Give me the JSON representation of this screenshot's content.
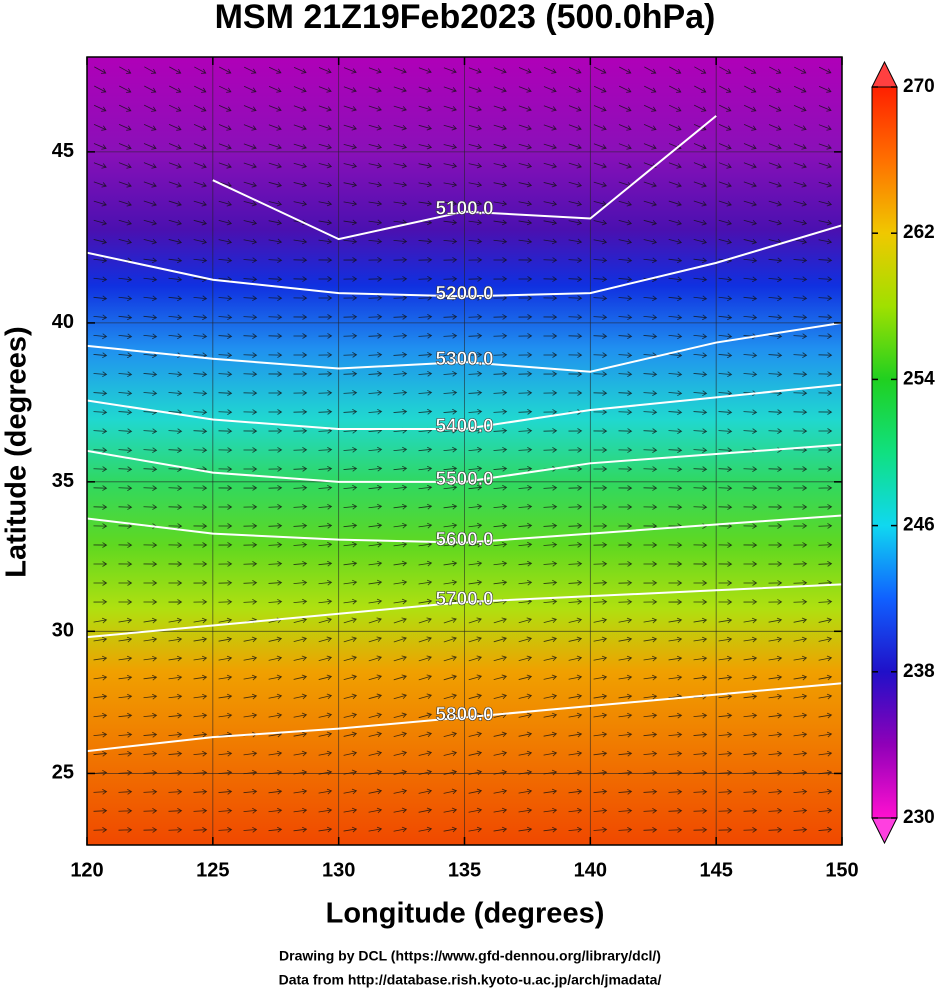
{
  "chart_data": {
    "type": "contour",
    "title": "MSM 21Z19Feb2023 (500.0hPa)",
    "x_label": "Longitude (degrees)",
    "y_label": "Latitude  (degrees)",
    "projection": "mercator",
    "xlim": [
      120,
      150
    ],
    "ylim": [
      22.4,
      47.6
    ],
    "xticks": [
      120,
      125,
      130,
      135,
      140,
      145,
      150
    ],
    "yticks": [
      25,
      30,
      35,
      40,
      45
    ],
    "grid": true,
    "x": [
      120,
      125,
      130,
      135,
      140,
      145,
      150
    ],
    "contours": [
      {
        "level": {
          "value": 5100,
          "label": "5100.0"
        },
        "lat": [
          null,
          44.2,
          42.5,
          43.3,
          43.1,
          46.0,
          null
        ]
      },
      {
        "level": {
          "value": 5200,
          "label": "5200.0"
        },
        "lat": [
          42.1,
          41.3,
          40.9,
          40.8,
          40.9,
          41.8,
          42.9
        ]
      },
      {
        "level": {
          "value": 5300,
          "label": "5300.0"
        },
        "lat": [
          39.3,
          38.9,
          38.6,
          38.8,
          38.5,
          39.4,
          40.0
        ]
      },
      {
        "level": {
          "value": 5400,
          "label": "5400.0"
        },
        "lat": [
          37.6,
          37.0,
          36.7,
          36.7,
          37.3,
          37.7,
          38.1
        ]
      },
      {
        "level": {
          "value": 5500,
          "label": "5500.0"
        },
        "lat": [
          36.0,
          35.3,
          35.0,
          35.0,
          35.6,
          35.9,
          36.2
        ]
      },
      {
        "level": {
          "value": 5600,
          "label": "5600.0"
        },
        "lat": [
          33.8,
          33.3,
          33.1,
          33.0,
          33.3,
          33.6,
          33.9
        ]
      },
      {
        "level": {
          "value": 5700,
          "label": "5700.0"
        },
        "lat": [
          29.8,
          30.2,
          30.6,
          31.0,
          31.2,
          31.4,
          31.6
        ]
      },
      {
        "level": {
          "value": 5800,
          "label": "5800.0"
        },
        "lat": [
          25.8,
          26.3,
          26.6,
          27.0,
          27.4,
          27.8,
          28.2
        ]
      }
    ],
    "colorbar": {
      "range": [
        230,
        270
      ],
      "ticks": [
        230,
        238,
        246,
        254,
        262,
        270
      ]
    },
    "credits": [
      "Drawing by DCL (https://www.gfd-dennou.org/library/dcl/)",
      "Data from http://database.rish.kyoto-u.ac.jp/arch/jmadata/"
    ]
  }
}
